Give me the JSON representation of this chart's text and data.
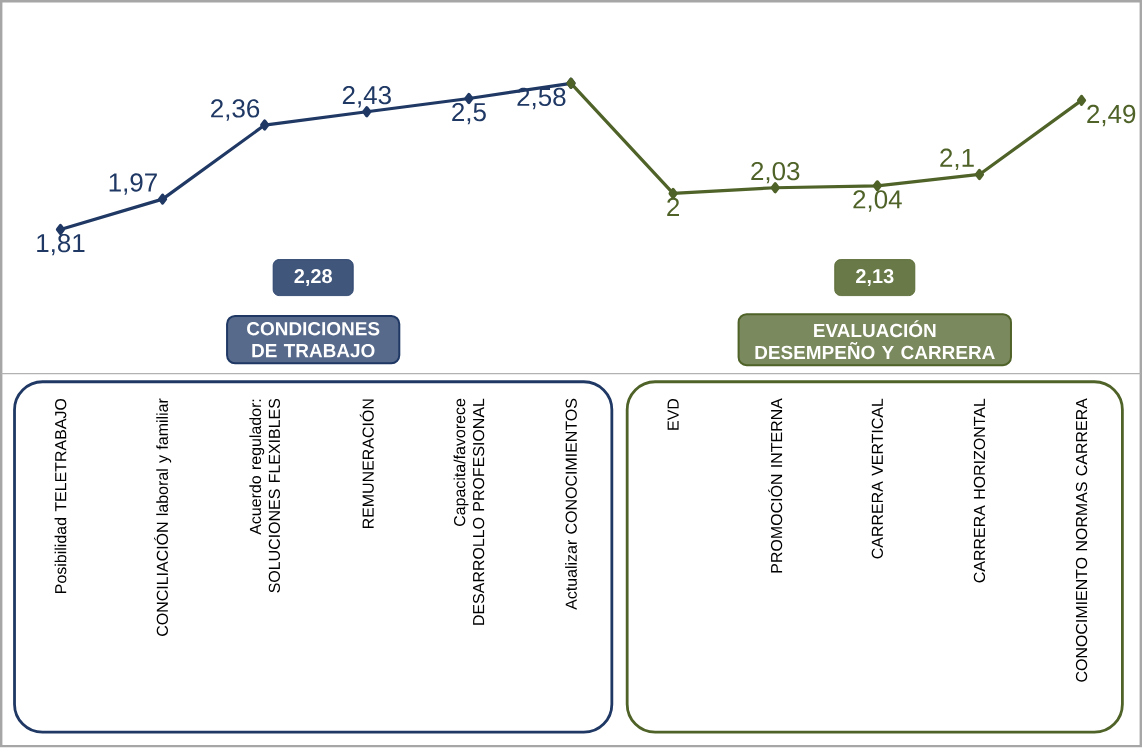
{
  "chart_data": {
    "type": "line",
    "categories": [
      "Posibilidad TELETRABAJO",
      "CONCILIACIÓN laboral y familiar",
      "Acuerdo regulador: SOLUCIONES FLEXIBLES",
      "REMUNERACIÓN",
      "Capacita/favorece DESARROLLO PROFESIONAL",
      "Actualizar CONOCIMIENTOS",
      "EVD",
      "PROMOCIÓN INTERNA",
      "CARRERA VERTICAL",
      "CARRERA HORIZONTAL",
      "CONOCIMIENTO NORMAS CARRERA"
    ],
    "series": [
      {
        "color": "#1f3864",
        "values": [
          1.81,
          1.97,
          2.36,
          2.43,
          2.5,
          2.58,
          null,
          null,
          null,
          null,
          null
        ],
        "value_labels": [
          "1,81",
          "1,97",
          "2,36",
          "2,43",
          "2,5",
          "2,58",
          null,
          null,
          null,
          null,
          null
        ]
      },
      {
        "color": "#4f6228",
        "values": [
          null,
          null,
          null,
          null,
          null,
          2.58,
          2,
          2.03,
          2.04,
          2.1,
          2.49
        ],
        "value_labels": [
          null,
          null,
          null,
          null,
          null,
          null,
          "2",
          "2,03",
          "2,04",
          "2,1",
          "2,49"
        ]
      }
    ],
    "annotations": [
      "2,28",
      "CONDICIONES DE TRABAJO",
      "2,13",
      "EVALUACIÓN DESEMPEÑO Y CARRERA"
    ],
    "marker": "diamond",
    "line_style": "solid"
  }
}
